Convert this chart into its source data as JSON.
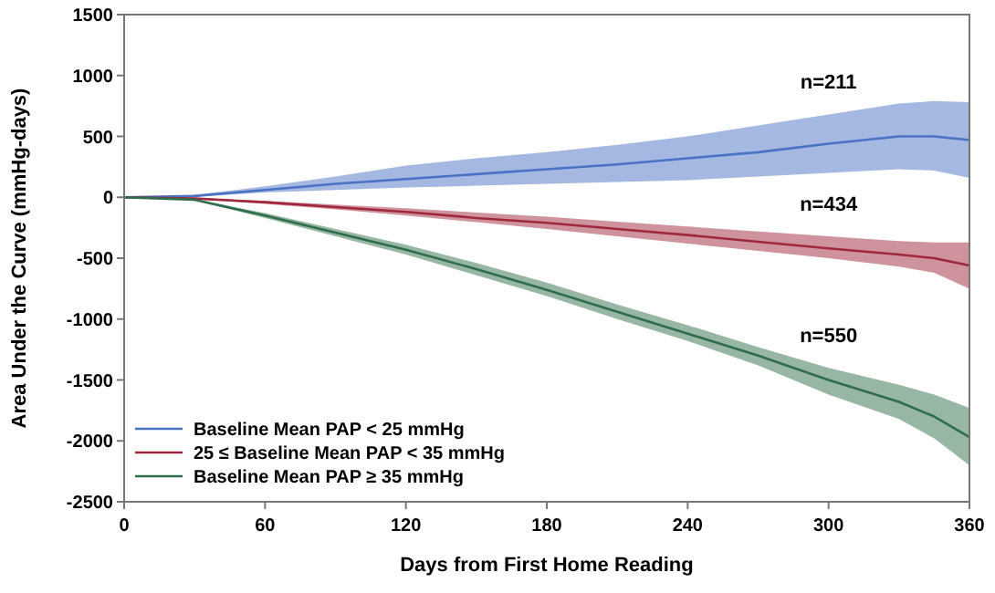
{
  "chart_data": {
    "type": "line",
    "xlabel": "Days from First Home Reading",
    "ylabel": "Area Under the Curve (mmHg-days)",
    "x": [
      0,
      30,
      60,
      90,
      120,
      150,
      180,
      210,
      240,
      270,
      300,
      330,
      345,
      360
    ],
    "series": [
      {
        "name": "Baseline Mean PAP < 25 mmHg",
        "color": "#4a72c4",
        "values": [
          0,
          10,
          60,
          110,
          150,
          190,
          230,
          270,
          320,
          370,
          440,
          500,
          500,
          470
        ],
        "upper": [
          0,
          20,
          90,
          170,
          260,
          320,
          370,
          430,
          500,
          590,
          680,
          770,
          790,
          780
        ],
        "lower": [
          0,
          5,
          40,
          60,
          80,
          95,
          110,
          125,
          140,
          170,
          200,
          230,
          220,
          160
        ]
      },
      {
        "name": "25 ≤ Baseline Mean PAP < 35 mmHg",
        "color": "#a0283c",
        "values": [
          0,
          -10,
          -40,
          -80,
          -120,
          -170,
          -210,
          -260,
          -310,
          -365,
          -420,
          -470,
          -500,
          -560
        ],
        "upper": [
          0,
          -5,
          -30,
          -60,
          -90,
          -125,
          -160,
          -200,
          -240,
          -280,
          -320,
          -360,
          -370,
          -370
        ],
        "lower": [
          0,
          -15,
          -55,
          -100,
          -150,
          -205,
          -260,
          -320,
          -380,
          -440,
          -500,
          -570,
          -620,
          -750
        ]
      },
      {
        "name": "Baseline Mean PAP ≥ 35 mmHg",
        "color": "#2f6e4a",
        "values": [
          0,
          -20,
          -150,
          -290,
          -430,
          -590,
          -760,
          -940,
          -1120,
          -1300,
          -1500,
          -1680,
          -1800,
          -1970
        ],
        "upper": [
          0,
          -15,
          -130,
          -260,
          -390,
          -540,
          -700,
          -880,
          -1050,
          -1230,
          -1400,
          -1540,
          -1620,
          -1730
        ],
        "lower": [
          0,
          -25,
          -170,
          -320,
          -470,
          -640,
          -810,
          -1000,
          -1180,
          -1380,
          -1620,
          -1820,
          -1980,
          -2200
        ]
      }
    ],
    "annotations": [
      "n=211",
      "n=434",
      "n=550"
    ],
    "xlim": [
      0,
      360
    ],
    "xticks": [
      0,
      60,
      120,
      180,
      240,
      300,
      360
    ],
    "ylim": [
      -2500,
      1500
    ],
    "yticks": [
      -2500,
      -2000,
      -1500,
      -1000,
      -500,
      0,
      500,
      1000,
      1500
    ],
    "grid": false,
    "legend": "bottom left",
    "marker": "none",
    "line_style": "solid"
  }
}
